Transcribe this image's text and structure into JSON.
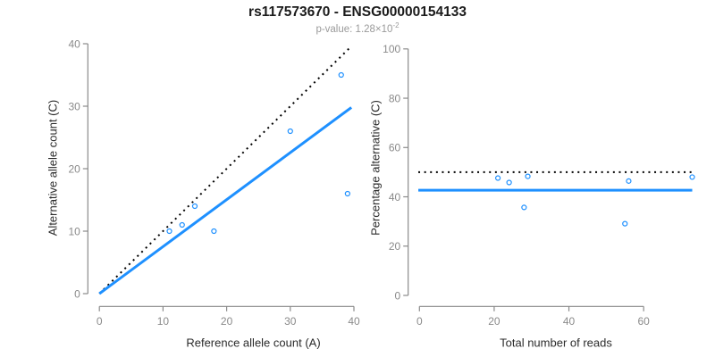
{
  "figure": {
    "title": "rs117573670 - ENSG00000154133",
    "subtitle_prefix": "p-value: 1.28×10",
    "subtitle_exponent": "-2"
  },
  "colors": {
    "accent_blue": "#1E90FF",
    "reference_black": "#000000",
    "axis_gray": "#8a8a8a",
    "tick_label_gray": "#8a8a8a",
    "axis_title_dark": "#2b2b2b",
    "subtitle_gray": "#9a9a9a"
  },
  "chart_data": [
    {
      "name": "allele-counts-scatter",
      "type": "scatter",
      "title": "",
      "xlabel": "Reference allele count (A)",
      "ylabel": "Alternative allele count (C)",
      "xlim": [
        0,
        40
      ],
      "ylim": [
        0,
        40
      ],
      "xticks": [
        0,
        10,
        20,
        30,
        40
      ],
      "yticks": [
        0,
        10,
        20,
        30,
        40
      ],
      "grid": false,
      "legend": "none",
      "marker": "open-circle",
      "points": [
        {
          "x": 11,
          "y": 10
        },
        {
          "x": 13,
          "y": 11
        },
        {
          "x": 15,
          "y": 14
        },
        {
          "x": 18,
          "y": 10
        },
        {
          "x": 30,
          "y": 26
        },
        {
          "x": 38,
          "y": 35
        },
        {
          "x": 39,
          "y": 16
        }
      ],
      "lines": [
        {
          "name": "identity-line",
          "style": "dotted",
          "color": "#000000",
          "x1": 0,
          "y1": 0,
          "x2": 39.4,
          "y2": 39.4
        },
        {
          "name": "fit-line",
          "style": "solid",
          "color": "#1E90FF",
          "x1": 0,
          "y1": 0,
          "x2": 39.6,
          "y2": 29.8
        }
      ]
    },
    {
      "name": "percentage-alternative-scatter",
      "type": "scatter",
      "title": "",
      "xlabel": "Total number of reads",
      "ylabel": "Percentage alternative (C)",
      "xlim": [
        0,
        74
      ],
      "ylim": [
        0,
        100
      ],
      "xticks": [
        0,
        20,
        40,
        60
      ],
      "yticks": [
        0,
        20,
        40,
        60,
        80,
        100
      ],
      "grid": false,
      "legend": "none",
      "marker": "open-circle",
      "points": [
        {
          "x": 21,
          "y": 47.6
        },
        {
          "x": 24,
          "y": 45.8
        },
        {
          "x": 29,
          "y": 48.3
        },
        {
          "x": 28,
          "y": 35.7
        },
        {
          "x": 55,
          "y": 29.1
        },
        {
          "x": 56,
          "y": 46.4
        },
        {
          "x": 73,
          "y": 48.0
        }
      ],
      "lines": [
        {
          "name": "expected-50pct-line",
          "style": "dotted",
          "color": "#000000",
          "x1": -0.3,
          "y1": 50,
          "x2": 73,
          "y2": 50
        },
        {
          "name": "mean-percentage-line",
          "style": "solid",
          "color": "#1E90FF",
          "x1": -0.3,
          "y1": 42.7,
          "x2": 73,
          "y2": 42.7
        }
      ]
    }
  ]
}
